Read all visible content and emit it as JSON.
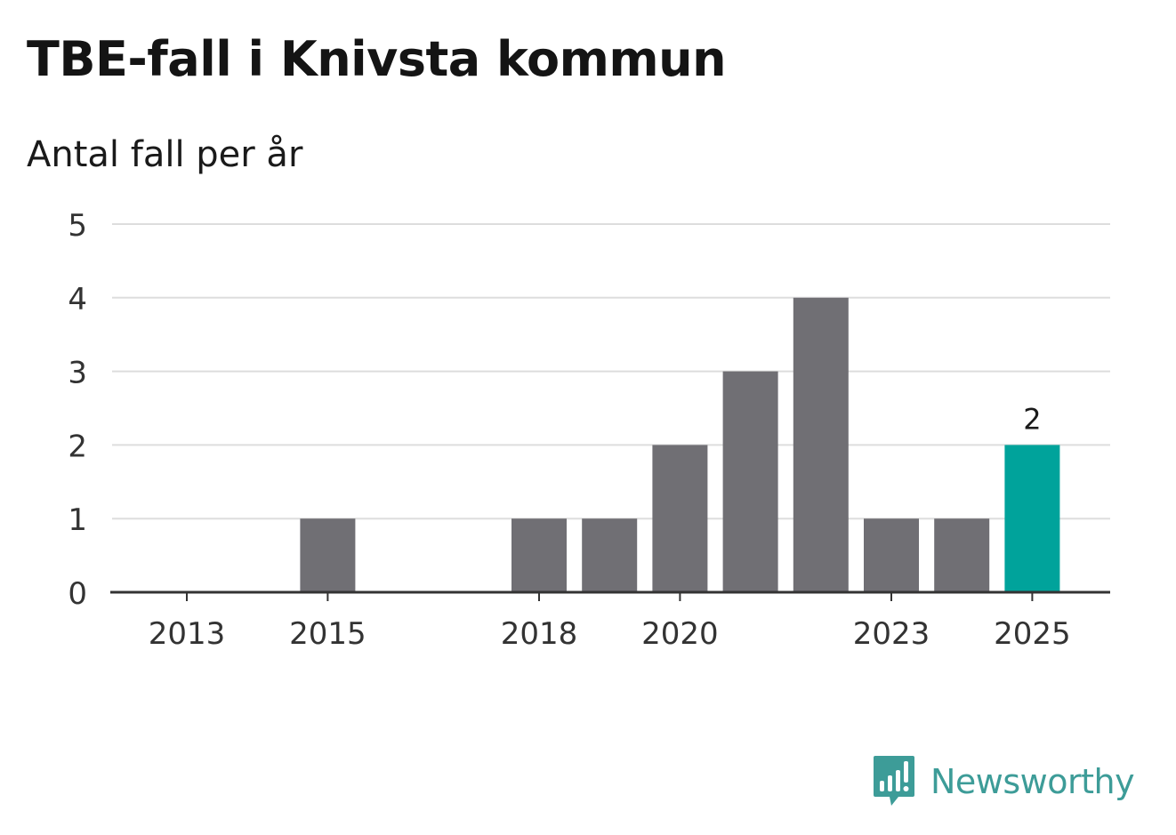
{
  "header": {
    "title": "TBE-fall i Knivsta kommun",
    "subtitle": "Antal fall per år"
  },
  "brand": {
    "name": "Newsworthy",
    "icon": "newsworthy-logo-icon",
    "color": "#3d9c98"
  },
  "chart_data": {
    "type": "bar",
    "title": "TBE-fall i Knivsta kommun",
    "subtitle": "Antal fall per år",
    "xlabel": "",
    "ylabel": "",
    "categories": [
      "2013",
      "2014",
      "2015",
      "2016",
      "2017",
      "2018",
      "2019",
      "2020",
      "2021",
      "2022",
      "2023",
      "2024",
      "2025"
    ],
    "values": [
      0,
      0,
      1,
      0,
      0,
      1,
      1,
      2,
      3,
      4,
      1,
      1,
      2
    ],
    "x_tick_labels": [
      "2013",
      "2015",
      "2018",
      "2020",
      "2023",
      "2025"
    ],
    "y_ticks": [
      0,
      1,
      2,
      3,
      4,
      5
    ],
    "ylim": [
      0,
      5
    ],
    "grid": true,
    "highlight": {
      "category": "2025",
      "label": "2"
    },
    "colors": {
      "bar": "#706f74",
      "highlight": "#00a39b",
      "grid": "#dddddd",
      "axis": "#333333",
      "tick_text": "#333333"
    }
  }
}
